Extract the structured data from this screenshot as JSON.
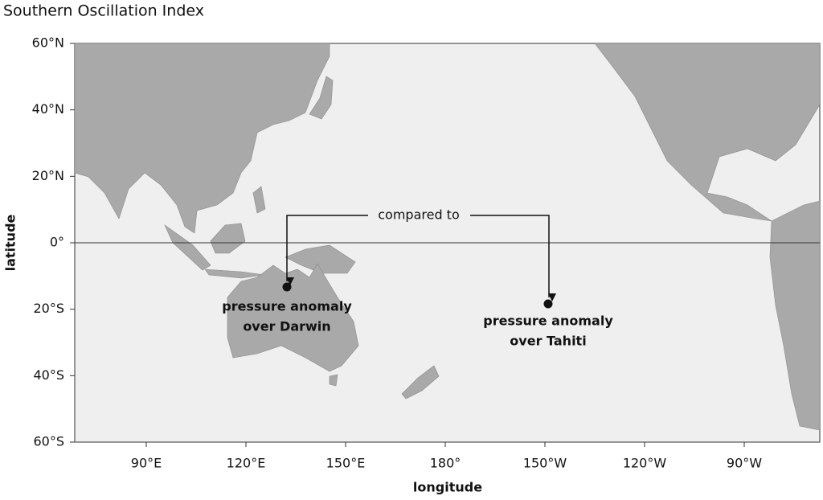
{
  "title": "Southern Oscillation Index",
  "y_axis": {
    "label": "latitude",
    "ticks": [
      "60°N",
      "40°N",
      "20°N",
      "0°",
      "20°S",
      "40°S",
      "60°S"
    ]
  },
  "x_axis": {
    "label": "longitude",
    "ticks": [
      "90°E",
      "120°E",
      "150°E",
      "180°",
      "150°W",
      "120°W",
      "90°W"
    ]
  },
  "annotations": {
    "link": "compared to",
    "darwin": [
      "pressure anomaly",
      "over Darwin"
    ],
    "tahiti": [
      "pressure anomaly",
      "over Tahiti"
    ]
  }
}
